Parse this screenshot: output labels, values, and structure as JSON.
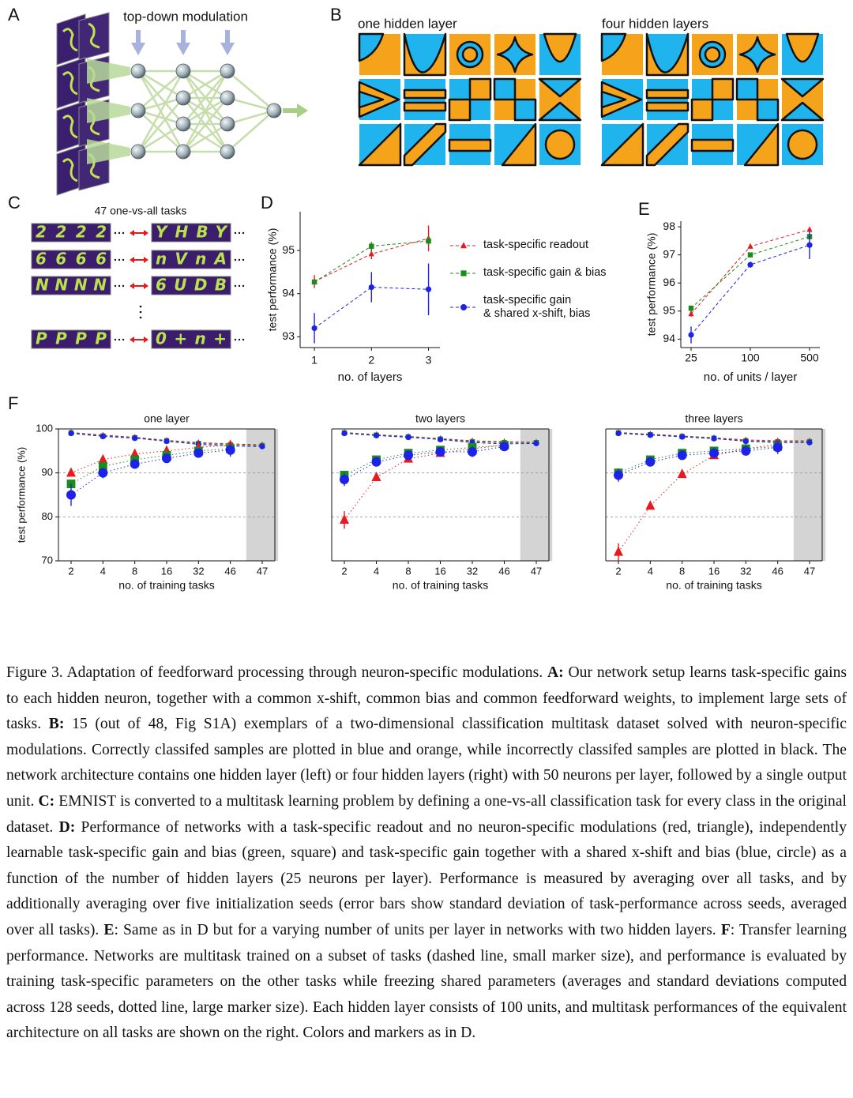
{
  "panel_labels": [
    "A",
    "B",
    "C",
    "D",
    "E",
    "F"
  ],
  "panel_a": {
    "label": "top-down modulation"
  },
  "panel_b": {
    "titles": [
      "one hidden layer",
      "four hidden layers"
    ]
  },
  "panel_c": {
    "title": "47 one-vs-all tasks",
    "rows": [
      [
        "2222",
        "YHBY"
      ],
      [
        "6666",
        "nVnA"
      ],
      [
        "NNNN",
        "6UDB"
      ],
      [
        "PPPP",
        "0+n+"
      ]
    ]
  },
  "chart_data": [
    {
      "type": "line",
      "x": [
        1,
        2,
        3
      ],
      "xlim": [
        0.75,
        3.2
      ],
      "xticks": [
        1,
        2,
        3
      ],
      "ylim": [
        92.75,
        95.9
      ],
      "yticks": [
        93,
        94,
        95
      ],
      "xlabel": "no. of layers",
      "ylabel": "test performance (%)",
      "spines": [
        "left",
        "bottom"
      ],
      "legend": "right",
      "series": [
        {
          "name": "task-specific readout",
          "color": "#e8191f",
          "marker": "triangle",
          "dash": "dashed",
          "marker_size": "small",
          "values": [
            94.28,
            94.92,
            95.28
          ],
          "errors": [
            0.15,
            0.12,
            0.3
          ]
        },
        {
          "name": "task-specific gain & bias",
          "color": "#1b8c1b",
          "marker": "square",
          "dash": "dashed",
          "marker_size": "small",
          "values": [
            94.27,
            95.1,
            95.22
          ],
          "errors": [
            0.05,
            0.1,
            0.1
          ]
        },
        {
          "name": "task-specific gain\n& shared x-shift, bias",
          "color": "#1c22e8",
          "marker": "circle",
          "dash": "dashed",
          "marker_size": "small",
          "values": [
            93.2,
            94.15,
            94.1
          ],
          "errors": [
            0.35,
            0.35,
            0.6
          ]
        }
      ]
    },
    {
      "type": "line",
      "categories": [
        "25",
        "100",
        "500"
      ],
      "ylim": [
        93.7,
        98.2
      ],
      "yticks": [
        94,
        95,
        96,
        97,
        98
      ],
      "xlabel": "no. of units / layer",
      "ylabel": "test performance (%)",
      "spines": [
        "left",
        "bottom"
      ],
      "series": [
        {
          "color": "#e8191f",
          "marker": "triangle",
          "dash": "dashed",
          "marker_size": "small",
          "values": [
            94.9,
            97.3,
            97.9
          ],
          "errors": [
            0.1,
            0.05,
            0.05
          ]
        },
        {
          "color": "#1b8c1b",
          "marker": "square",
          "dash": "dashed",
          "marker_size": "small",
          "values": [
            95.1,
            97.0,
            97.65
          ],
          "errors": [
            0.1,
            0.05,
            0.1
          ]
        },
        {
          "color": "#1c22e8",
          "marker": "circle",
          "dash": "dashed",
          "marker_size": "small",
          "values": [
            94.15,
            96.65,
            97.35
          ],
          "errors": [
            0.3,
            0.1,
            0.5
          ]
        }
      ]
    },
    {
      "type": "line",
      "title": "one layer",
      "categories": [
        "2",
        "4",
        "8",
        "16",
        "32",
        "46",
        "47"
      ],
      "ylim": [
        70,
        100
      ],
      "yticks": [
        70,
        80,
        90,
        100
      ],
      "hlines": [
        80,
        90
      ],
      "shade_last": true,
      "xlabel": "no. of training tasks",
      "ylabel": "test performance (%)",
      "spines": [
        "left",
        "right",
        "top",
        "bottom"
      ],
      "series": [
        {
          "color": "#e8191f",
          "marker": "triangle",
          "dash": "dashed",
          "marker_size": "small",
          "values": [
            99.2,
            98.6,
            98.1,
            97.4,
            96.9,
            96.6,
            96.4
          ]
        },
        {
          "color": "#1b8c1b",
          "marker": "square",
          "dash": "dashed",
          "marker_size": "small",
          "values": [
            99.1,
            98.4,
            98.0,
            97.3,
            96.7,
            96.4,
            96.2
          ]
        },
        {
          "color": "#1c22e8",
          "marker": "circle",
          "dash": "dashed",
          "marker_size": "small",
          "values": [
            99.0,
            98.3,
            97.9,
            97.2,
            96.5,
            96.1,
            96.0
          ]
        },
        {
          "color": "#e8191f",
          "marker": "triangle",
          "dash": "dotted",
          "marker_size": "large",
          "values": [
            90.0,
            93.0,
            94.3,
            95.0,
            95.8,
            96.3,
            null
          ]
        },
        {
          "color": "#1b8c1b",
          "marker": "square",
          "dash": "dotted",
          "marker_size": "large",
          "values": [
            87.5,
            91.5,
            93.0,
            94.0,
            95.0,
            95.5,
            null
          ]
        },
        {
          "color": "#1c22e8",
          "marker": "circle",
          "dash": "dotted",
          "marker_size": "large",
          "values": [
            85.0,
            90.0,
            92.0,
            93.3,
            94.5,
            95.2,
            null
          ],
          "errors": [
            2.5,
            1.2,
            0.8,
            0.8,
            0.8,
            1.5,
            null
          ]
        }
      ]
    },
    {
      "type": "line",
      "title": "two layers",
      "categories": [
        "2",
        "4",
        "8",
        "16",
        "32",
        "46",
        "47"
      ],
      "ylim": [
        70,
        100
      ],
      "hlines": [
        80,
        90
      ],
      "shade_last": true,
      "xlabel": "no. of training tasks",
      "spines": [
        "left",
        "right",
        "top",
        "bottom"
      ],
      "series": [
        {
          "color": "#e8191f",
          "marker": "triangle",
          "dash": "dashed",
          "marker_size": "small",
          "values": [
            99.2,
            98.7,
            98.3,
            97.8,
            97.3,
            97.1,
            97.0
          ]
        },
        {
          "color": "#1b8c1b",
          "marker": "square",
          "dash": "dashed",
          "marker_size": "small",
          "values": [
            99.1,
            98.6,
            98.2,
            97.7,
            97.1,
            96.9,
            96.9
          ]
        },
        {
          "color": "#1c22e8",
          "marker": "circle",
          "dash": "dashed",
          "marker_size": "small",
          "values": [
            99.0,
            98.5,
            98.1,
            97.6,
            96.9,
            96.6,
            96.7
          ]
        },
        {
          "color": "#e8191f",
          "marker": "triangle",
          "dash": "dotted",
          "marker_size": "large",
          "values": [
            79.3,
            89.0,
            93.2,
            94.5,
            95.5,
            96.3,
            null
          ],
          "errors": [
            2.0,
            0.8,
            0.5,
            0.5,
            0.5,
            0.5,
            null
          ]
        },
        {
          "color": "#1b8c1b",
          "marker": "square",
          "dash": "dotted",
          "marker_size": "large",
          "values": [
            89.5,
            93.0,
            94.5,
            95.2,
            95.8,
            96.3,
            null
          ]
        },
        {
          "color": "#1c22e8",
          "marker": "circle",
          "dash": "dotted",
          "marker_size": "large",
          "values": [
            88.5,
            92.5,
            94.0,
            94.8,
            94.8,
            96.0,
            null
          ],
          "errors": [
            1.5,
            1.0,
            0.8,
            0.8,
            1.2,
            1.0,
            null
          ]
        }
      ]
    },
    {
      "type": "line",
      "title": "three layers",
      "categories": [
        "2",
        "4",
        "8",
        "16",
        "32",
        "46",
        "47"
      ],
      "ylim": [
        70,
        100
      ],
      "hlines": [
        80,
        90
      ],
      "shade_last": true,
      "xlabel": "no. of training tasks",
      "spines": [
        "left",
        "right",
        "top",
        "bottom"
      ],
      "series": [
        {
          "color": "#e8191f",
          "marker": "triangle",
          "dash": "dashed",
          "marker_size": "small",
          "values": [
            99.2,
            98.8,
            98.4,
            98.0,
            97.5,
            97.3,
            97.3
          ]
        },
        {
          "color": "#1b8c1b",
          "marker": "square",
          "dash": "dashed",
          "marker_size": "small",
          "values": [
            99.1,
            98.7,
            98.3,
            97.9,
            97.3,
            97.1,
            97.1
          ]
        },
        {
          "color": "#1c22e8",
          "marker": "circle",
          "dash": "dashed",
          "marker_size": "small",
          "values": [
            99.0,
            98.6,
            98.2,
            97.8,
            97.2,
            96.9,
            96.9
          ]
        },
        {
          "color": "#e8191f",
          "marker": "triangle",
          "dash": "dotted",
          "marker_size": "large",
          "values": [
            72.0,
            82.5,
            89.7,
            94.0,
            95.5,
            96.5,
            null
          ],
          "errors": [
            2.0,
            0.8,
            0.5,
            0.5,
            0.5,
            0.5,
            null
          ]
        },
        {
          "color": "#1b8c1b",
          "marker": "square",
          "dash": "dotted",
          "marker_size": "large",
          "values": [
            90.0,
            93.0,
            94.5,
            95.0,
            95.5,
            96.0,
            null
          ]
        },
        {
          "color": "#1c22e8",
          "marker": "circle",
          "dash": "dotted",
          "marker_size": "large",
          "values": [
            89.5,
            92.5,
            94.0,
            94.5,
            95.0,
            95.8,
            null
          ],
          "errors": [
            1.5,
            0.8,
            0.6,
            0.8,
            1.0,
            1.5,
            null
          ]
        }
      ]
    }
  ],
  "caption": [
    {
      "text": "Figure 3.  Adaptation of feedforward processing through neuron-specific modulations. "
    },
    {
      "text": "A:",
      "bold": true
    },
    {
      "text": " Our network setup learns task-specific gains to each hidden neuron, together with a common x-shift, common bias and common feedforward weights, to implement large sets of tasks. "
    },
    {
      "text": "B:",
      "bold": true
    },
    {
      "text": " 15 (out of 48, Fig S1A) exemplars of a two-dimensional classification multitask dataset solved with neuron-specific modulations.  Correctly classifed samples are plotted in blue and orange, while incorrectly classifed samples are plotted in black.  The network architecture contains one hidden layer (left) or four hidden layers (right) with 50 neurons per layer, followed by a single output unit. "
    },
    {
      "text": "C:",
      "bold": true
    },
    {
      "text": " EMNIST is converted to a multitask learning problem by defining a one-vs-all classification task for every class in the original dataset. "
    },
    {
      "text": "D:",
      "bold": true
    },
    {
      "text": " Performance of networks with a task-specific readout and no neuron-specific modulations (red, triangle), independently learnable task-specific gain and bias (green, square) and task-specific gain together with a shared x-shift and bias (blue, circle) as a function of the number of hidden layers (25 neurons per layer). Performance is measured by averaging over all tasks, and by additionally averaging over five initialization seeds (error bars show standard deviation of task-performance across seeds, averaged over all tasks). "
    },
    {
      "text": "E",
      "bold": true
    },
    {
      "text": ": Same as in D but for a varying number of units per layer in networks with two hidden layers. "
    },
    {
      "text": "F",
      "bold": true
    },
    {
      "text": ": Transfer learning performance. Networks are multitask trained on a subset of tasks (dashed line, small marker size), and performance is evaluated by training task-specific parameters on the other tasks while freezing shared parameters (averages and standard deviations computed across 128 seeds, dotted line, large marker size). Each hidden layer consists of 100 units, and multitask performances of the equivalent architecture on all tasks are shown on the right. Colors and markers as in D."
    }
  ]
}
